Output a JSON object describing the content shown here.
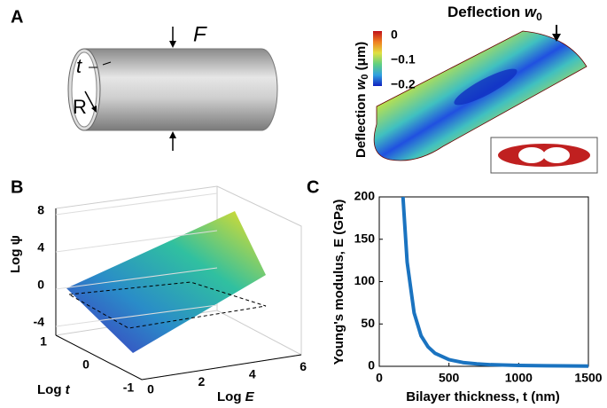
{
  "panels": {
    "a": {
      "label": "A",
      "force": "F",
      "thickness": "t",
      "radius": "R",
      "title": "Deflection",
      "title_var": "w",
      "title_sub": "0",
      "colorbar_title": "Deflection",
      "colorbar_var": "w",
      "colorbar_sub": "0",
      "colorbar_unit": "(μm)",
      "colorbar_ticks": [
        "0",
        "−0.1",
        "−0.2"
      ]
    },
    "b": {
      "label": "B"
    },
    "c": {
      "label": "C"
    }
  },
  "chart_data": [
    {
      "type": "surface3d",
      "xlabel": "Log",
      "xlabel_var": "E",
      "ylabel": "Log",
      "ylabel_var": "t",
      "zlabel": "Log ψ",
      "xticks": [
        0,
        2,
        4,
        6
      ],
      "yticks": [
        -1,
        0,
        1
      ],
      "zticks": [
        8,
        4,
        0,
        -4
      ]
    },
    {
      "type": "line",
      "xlabel": "Bilayer thickness, t (nm)",
      "ylabel": "Young's modulus, E (GPa)",
      "xlim": [
        0,
        1500
      ],
      "ylim": [
        0,
        200
      ],
      "xticks": [
        0,
        500,
        1000,
        1500
      ],
      "yticks": [
        0,
        50,
        100,
        150,
        200
      ],
      "series": [
        {
          "color": "#1a73c0",
          "x": [
            170,
            200,
            250,
            300,
            350,
            400,
            500,
            600,
            700,
            800,
            1000,
            1200,
            1500
          ],
          "values": [
            200,
            123,
            63,
            36,
            23,
            15.4,
            7.9,
            4.5,
            2.9,
            1.9,
            1.0,
            0.6,
            0.3
          ]
        }
      ]
    }
  ]
}
